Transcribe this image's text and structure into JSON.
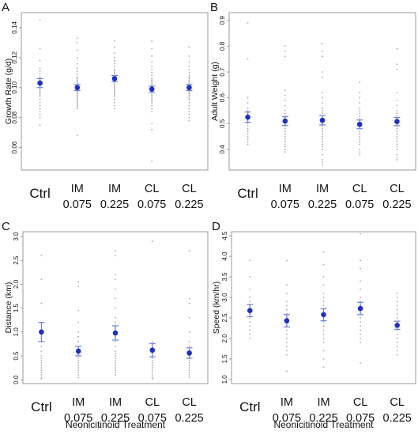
{
  "chart_data": [
    {
      "type": "scatter",
      "panel_letter": "A",
      "title": "",
      "xlabel": "",
      "ylabel": "Growth Rate (g/d)",
      "categories": [
        [
          "Ctrl"
        ],
        [
          "IM",
          "0.075"
        ],
        [
          "IM",
          "0.225"
        ],
        [
          "CL",
          "0.075"
        ],
        [
          "CL",
          "0.225"
        ]
      ],
      "ylim": [
        0.045,
        0.15
      ],
      "yticks": [
        0.06,
        0.08,
        0.1,
        0.12,
        0.14
      ],
      "ytick_labels": [
        "0.06",
        "0.08",
        "0.10",
        "0.12",
        "0.14"
      ],
      "means": [
        0.103,
        0.1,
        0.106,
        0.099,
        0.1
      ],
      "ci": [
        [
          0.1,
          0.106
        ],
        [
          0.098,
          0.102
        ],
        [
          0.104,
          0.108
        ],
        [
          0.097,
          0.101
        ],
        [
          0.098,
          0.102
        ]
      ],
      "points": [
        [
          0.145,
          0.126,
          0.118,
          0.113,
          0.111,
          0.109,
          0.107,
          0.106,
          0.105,
          0.104,
          0.103,
          0.102,
          0.101,
          0.1,
          0.099,
          0.098,
          0.097,
          0.096,
          0.095,
          0.094,
          0.092,
          0.09,
          0.088,
          0.086,
          0.084,
          0.082,
          0.08,
          0.075
        ],
        [
          0.133,
          0.13,
          0.125,
          0.12,
          0.116,
          0.113,
          0.111,
          0.109,
          0.107,
          0.106,
          0.105,
          0.104,
          0.103,
          0.102,
          0.101,
          0.1,
          0.099,
          0.098,
          0.097,
          0.096,
          0.095,
          0.094,
          0.093,
          0.092,
          0.091,
          0.09,
          0.089,
          0.088,
          0.087,
          0.086,
          0.068
        ],
        [
          0.131,
          0.127,
          0.123,
          0.12,
          0.118,
          0.116,
          0.114,
          0.112,
          0.111,
          0.11,
          0.109,
          0.108,
          0.107,
          0.106,
          0.105,
          0.104,
          0.103,
          0.102,
          0.101,
          0.1,
          0.099,
          0.098,
          0.097,
          0.096,
          0.095,
          0.094,
          0.092,
          0.09,
          0.088,
          0.086
        ],
        [
          0.131,
          0.126,
          0.121,
          0.117,
          0.114,
          0.112,
          0.11,
          0.108,
          0.106,
          0.105,
          0.104,
          0.103,
          0.102,
          0.101,
          0.1,
          0.099,
          0.098,
          0.097,
          0.096,
          0.095,
          0.094,
          0.093,
          0.092,
          0.091,
          0.09,
          0.088,
          0.086,
          0.084,
          0.076,
          0.072,
          0.051
        ],
        [
          0.127,
          0.121,
          0.117,
          0.114,
          0.112,
          0.11,
          0.108,
          0.107,
          0.106,
          0.105,
          0.104,
          0.103,
          0.102,
          0.101,
          0.1,
          0.099,
          0.098,
          0.097,
          0.096,
          0.095,
          0.094,
          0.093,
          0.092,
          0.09,
          0.088,
          0.086,
          0.084,
          0.082,
          0.08,
          0.078
        ]
      ]
    },
    {
      "type": "scatter",
      "panel_letter": "B",
      "title": "",
      "xlabel": "",
      "ylabel": "Adult Weight (g)",
      "categories": [
        [
          "Ctrl"
        ],
        [
          "IM",
          "0.075"
        ],
        [
          "IM",
          "0.225"
        ],
        [
          "CL",
          "0.075"
        ],
        [
          "CL",
          "0.225"
        ]
      ],
      "ylim": [
        0.32,
        0.93
      ],
      "yticks": [
        0.4,
        0.5,
        0.6,
        0.7,
        0.8,
        0.9
      ],
      "ytick_labels": [
        "0.4",
        "0.5",
        "0.6",
        "0.7",
        "0.8",
        "0.9"
      ],
      "means": [
        0.525,
        0.51,
        0.513,
        0.497,
        0.508
      ],
      "ci": [
        [
          0.505,
          0.545
        ],
        [
          0.493,
          0.527
        ],
        [
          0.495,
          0.531
        ],
        [
          0.48,
          0.514
        ],
        [
          0.492,
          0.524
        ]
      ],
      "points": [
        [
          0.89,
          0.75,
          0.6,
          0.58,
          0.56,
          0.55,
          0.54,
          0.53,
          0.52,
          0.51,
          0.5,
          0.49,
          0.48,
          0.47,
          0.46,
          0.45,
          0.44,
          0.43,
          0.42
        ],
        [
          0.8,
          0.78,
          0.76,
          0.63,
          0.61,
          0.59,
          0.57,
          0.55,
          0.54,
          0.53,
          0.52,
          0.51,
          0.5,
          0.49,
          0.48,
          0.47,
          0.46,
          0.45,
          0.44,
          0.43,
          0.42,
          0.41,
          0.4,
          0.39
        ],
        [
          0.81,
          0.78,
          0.76,
          0.7,
          0.68,
          0.62,
          0.6,
          0.58,
          0.56,
          0.55,
          0.54,
          0.53,
          0.52,
          0.51,
          0.5,
          0.49,
          0.48,
          0.47,
          0.46,
          0.45,
          0.44,
          0.43,
          0.42,
          0.41,
          0.4,
          0.38,
          0.36,
          0.35,
          0.34
        ],
        [
          0.66,
          0.62,
          0.6,
          0.58,
          0.56,
          0.55,
          0.54,
          0.53,
          0.52,
          0.51,
          0.5,
          0.49,
          0.48,
          0.47,
          0.46,
          0.45,
          0.44,
          0.43,
          0.42,
          0.4,
          0.39,
          0.38
        ],
        [
          0.79,
          0.73,
          0.71,
          0.62,
          0.59,
          0.57,
          0.55,
          0.54,
          0.53,
          0.52,
          0.51,
          0.5,
          0.49,
          0.48,
          0.47,
          0.46,
          0.45,
          0.44,
          0.43,
          0.42,
          0.41,
          0.4,
          0.38,
          0.37,
          0.36
        ]
      ]
    },
    {
      "type": "scatter",
      "panel_letter": "C",
      "title": "",
      "xlabel": "Neonicitinoid Treatment",
      "ylabel": "Distance (km)",
      "categories": [
        [
          "Ctrl"
        ],
        [
          "IM",
          "0.075"
        ],
        [
          "IM",
          "0.225"
        ],
        [
          "CL",
          "0.075"
        ],
        [
          "CL",
          "0.225"
        ]
      ],
      "ylim": [
        -0.08,
        3.1
      ],
      "yticks": [
        0.0,
        0.5,
        1.0,
        1.5,
        2.0,
        2.5,
        3.0
      ],
      "ytick_labels": [
        "0.0",
        "0.5",
        "1.0",
        "1.5",
        "2.0",
        "2.5",
        "3.0"
      ],
      "means": [
        1.0,
        0.6,
        0.98,
        0.62,
        0.56
      ],
      "ci": [
        [
          0.8,
          1.2
        ],
        [
          0.5,
          0.7
        ],
        [
          0.83,
          1.13
        ],
        [
          0.48,
          0.76
        ],
        [
          0.45,
          0.67
        ]
      ],
      "points": [
        [
          2.6,
          2.1,
          1.6,
          1.2,
          1.0,
          0.95,
          0.9,
          0.8,
          0.7,
          0.6,
          0.5,
          0.45,
          0.4,
          0.35,
          0.3,
          0.25,
          0.2,
          0.15,
          0.1,
          0.05,
          0.02
        ],
        [
          2.05,
          1.95,
          1.45,
          1.2,
          1.0,
          0.9,
          0.8,
          0.7,
          0.6,
          0.55,
          0.5,
          0.45,
          0.4,
          0.35,
          0.3,
          0.25,
          0.2,
          0.15,
          0.1,
          0.05
        ],
        [
          2.7,
          2.6,
          2.2,
          2.1,
          1.9,
          1.7,
          1.5,
          1.3,
          1.2,
          1.1,
          1.0,
          0.9,
          0.8,
          0.7,
          0.6,
          0.55,
          0.5,
          0.45,
          0.4,
          0.35,
          0.3,
          0.25,
          0.2,
          0.15,
          0.1
        ],
        [
          2.9,
          0.8,
          0.75,
          0.7,
          0.65,
          0.6,
          0.55,
          0.5,
          0.45,
          0.4,
          0.35,
          0.3,
          0.25,
          0.2,
          0.15,
          0.1,
          0.05,
          0.02
        ],
        [
          2.7,
          1.7,
          1.6,
          1.3,
          1.0,
          0.8,
          0.7,
          0.6,
          0.55,
          0.5,
          0.45,
          0.4,
          0.35,
          0.3,
          0.25,
          0.2,
          0.15,
          0.1,
          0.05
        ]
      ]
    },
    {
      "type": "scatter",
      "panel_letter": "D",
      "title": "",
      "xlabel": "Neonicitinoid Treatment",
      "ylabel": "Speed (km/hr)",
      "categories": [
        [
          "Ctrl"
        ],
        [
          "IM",
          "0.075"
        ],
        [
          "IM",
          "0.225"
        ],
        [
          "CL",
          "0.075"
        ],
        [
          "CL",
          "0.225"
        ]
      ],
      "ylim": [
        0.9,
        4.6
      ],
      "yticks": [
        1.0,
        1.5,
        2.0,
        2.5,
        3.0,
        3.5,
        4.0,
        4.5
      ],
      "ytick_labels": [
        "1.0",
        "1.5",
        "2.0",
        "2.5",
        "3.0",
        "3.5",
        "4.0",
        "4.5"
      ],
      "means": [
        2.68,
        2.43,
        2.58,
        2.73,
        2.32
      ],
      "ci": [
        [
          2.53,
          2.83
        ],
        [
          2.28,
          2.58
        ],
        [
          2.43,
          2.73
        ],
        [
          2.58,
          2.88
        ],
        [
          2.22,
          2.42
        ]
      ],
      "points": [
        [
          3.9,
          3.5,
          3.2,
          3.0,
          2.9,
          2.8,
          2.7,
          2.6,
          2.5,
          2.4,
          2.3,
          2.2,
          2.1,
          2.0
        ],
        [
          3.9,
          3.3,
          3.1,
          2.9,
          2.8,
          2.7,
          2.6,
          2.5,
          2.4,
          2.3,
          2.2,
          2.1,
          2.0,
          1.9,
          1.8,
          1.7,
          1.6,
          1.2
        ],
        [
          4.1,
          3.8,
          3.5,
          3.3,
          3.1,
          3.0,
          2.9,
          2.8,
          2.7,
          2.6,
          2.5,
          2.4,
          2.3,
          2.2,
          2.1,
          2.0,
          1.9,
          1.7,
          1.5,
          1.3
        ],
        [
          4.55,
          3.9,
          3.7,
          3.4,
          3.2,
          3.0,
          2.9,
          2.8,
          2.7,
          2.6,
          2.5,
          2.4,
          2.3,
          2.2,
          2.1,
          2.0,
          1.9,
          1.4
        ],
        [
          3.1,
          3.0,
          2.9,
          2.8,
          2.7,
          2.6,
          2.5,
          2.4,
          2.3,
          2.2,
          2.1,
          2.0,
          1.9,
          1.8,
          1.7,
          1.6
        ]
      ]
    }
  ],
  "colors": {
    "mean": "#1f2fbf",
    "ci": "#6e7fe0",
    "points": "#a8a8a8",
    "frame": "#9a9a9a"
  }
}
